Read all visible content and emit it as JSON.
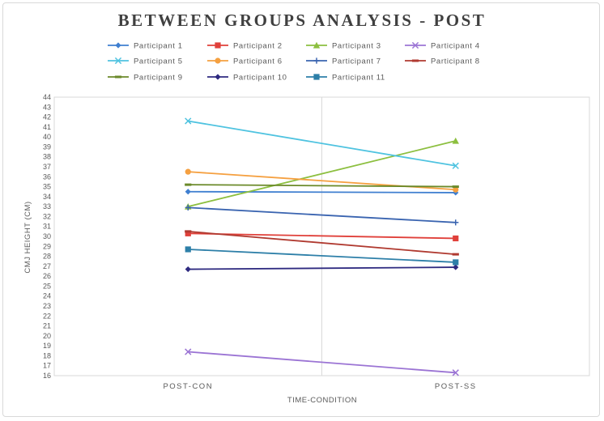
{
  "chart_data": {
    "type": "line",
    "title": "BETWEEN GROUPS ANALYSIS - POST",
    "xlabel": "TIME-CONDITION",
    "ylabel": "CMJ HEIGHT (CM)",
    "categories": [
      "POST-CON",
      "POST-SS"
    ],
    "ylim": [
      16,
      44
    ],
    "yticks": [
      16,
      17,
      18,
      19,
      20,
      21,
      22,
      23,
      24,
      25,
      26,
      27,
      28,
      29,
      30,
      31,
      32,
      33,
      34,
      35,
      36,
      37,
      38,
      39,
      40,
      41,
      42,
      43,
      44
    ],
    "grid": false,
    "legend_position": "top",
    "series": [
      {
        "name": "Participant 1",
        "color": "#3f7fd0",
        "marker": "diamond",
        "values": [
          34.5,
          34.4
        ]
      },
      {
        "name": "Participant 2",
        "color": "#e0403a",
        "marker": "square",
        "values": [
          30.3,
          29.8
        ]
      },
      {
        "name": "Participant 3",
        "color": "#8cbf3f",
        "marker": "triangle",
        "values": [
          33.0,
          39.6
        ]
      },
      {
        "name": "Participant 4",
        "color": "#9b74d4",
        "marker": "x",
        "values": [
          18.4,
          16.3
        ]
      },
      {
        "name": "Participant 5",
        "color": "#4fc3e0",
        "marker": "x",
        "values": [
          41.6,
          37.1
        ]
      },
      {
        "name": "Participant 6",
        "color": "#f5a040",
        "marker": "circle",
        "values": [
          36.5,
          34.7
        ]
      },
      {
        "name": "Participant 7",
        "color": "#3a64b0",
        "marker": "plus",
        "values": [
          32.9,
          31.4
        ]
      },
      {
        "name": "Participant 8",
        "color": "#b03a30",
        "marker": "dash",
        "values": [
          30.5,
          28.2
        ]
      },
      {
        "name": "Participant 9",
        "color": "#6b8a2a",
        "marker": "dash",
        "values": [
          35.2,
          35.0
        ]
      },
      {
        "name": "Participant 10",
        "color": "#2e2a80",
        "marker": "diamond",
        "values": [
          26.7,
          26.9
        ]
      },
      {
        "name": "Participant 11",
        "color": "#2d7fa8",
        "marker": "square",
        "values": [
          28.7,
          27.4
        ]
      }
    ]
  }
}
